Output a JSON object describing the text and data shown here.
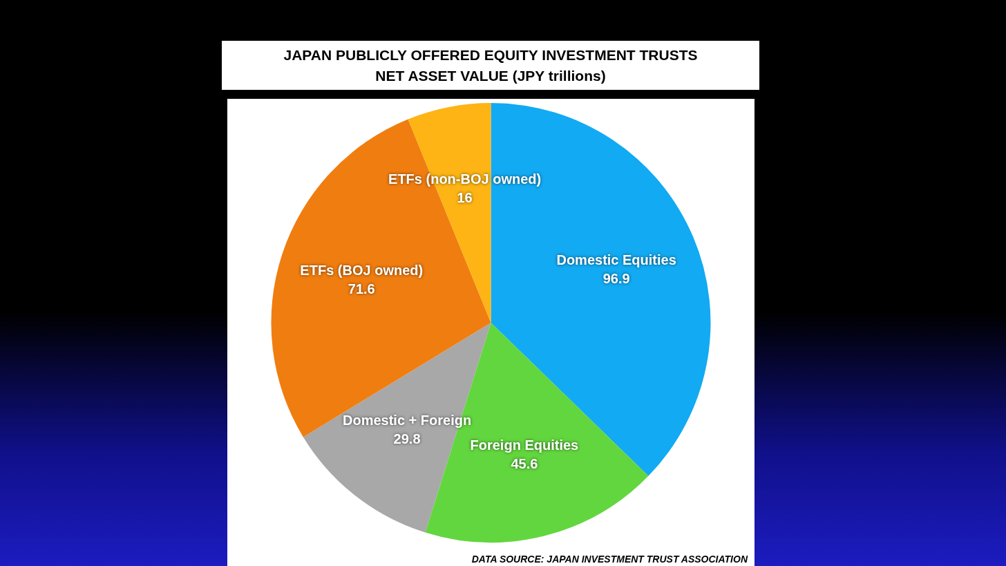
{
  "chart_data": {
    "type": "pie",
    "title": "JAPAN PUBLICLY OFFERED EQUITY INVESTMENT TRUSTS\nNET ASSET VALUE (JPY trillions)",
    "categories": [
      "Domestic Equities",
      "Foreign Equities",
      "Domestic + Foreign",
      "ETFs (BOJ owned)",
      "ETFs (non-BOJ owned)"
    ],
    "values": [
      96.9,
      45.6,
      29.8,
      71.6,
      16
    ],
    "colors": [
      "#12aaf2",
      "#62d63e",
      "#a8a8a8",
      "#f07d10",
      "#fdb414"
    ],
    "data_labels": true,
    "annotations": [
      "DATA SOURCE: JAPAN INVESTMENT TRUST ASSOCIATION"
    ]
  }
}
